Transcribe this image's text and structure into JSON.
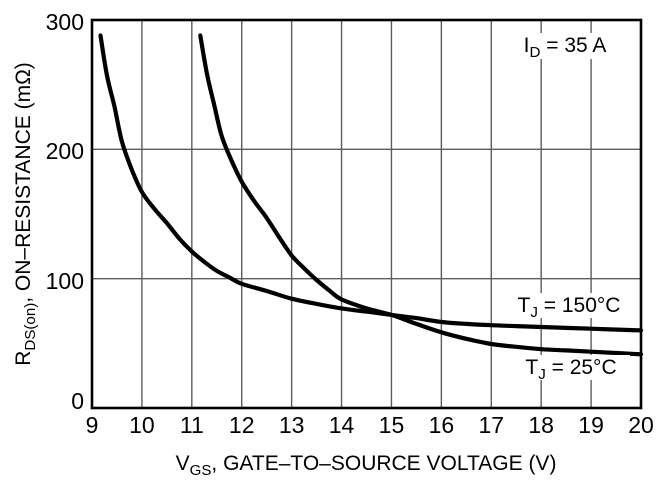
{
  "chart_data": {
    "type": "line",
    "title": "",
    "xlabel": "V_{GS}, GATE–TO–SOURCE VOLTAGE (V)",
    "ylabel": "R_{DS(on)}, ON–RESISTANCE (mΩ)",
    "xlim": [
      9,
      20
    ],
    "ylim": [
      0,
      300
    ],
    "x_ticks": [
      "9",
      "10",
      "11",
      "12",
      "13",
      "14",
      "15",
      "16",
      "17",
      "18",
      "19",
      "20"
    ],
    "y_ticks": [
      "0",
      "100",
      "200",
      "300"
    ],
    "grid": true,
    "legend_position": "inline-labels",
    "annotation": {
      "text": "I_{D} = 35 A"
    },
    "series": [
      {
        "name": "TJ = 150C",
        "label_text": "T_{J} = 150°C",
        "x": [
          9.17,
          9.3,
          9.45,
          9.6,
          9.8,
          10,
          10.25,
          10.5,
          10.75,
          11,
          11.25,
          11.5,
          11.75,
          12,
          12.5,
          13,
          13.5,
          14,
          14.5,
          15,
          15.5,
          16,
          16.5,
          17,
          17.5,
          18,
          19,
          20
        ],
        "y": [
          288,
          257,
          233,
          206,
          184,
          167,
          154,
          143,
          131,
          121,
          113,
          106,
          101,
          96,
          90.5,
          84.5,
          80.5,
          77,
          74.5,
          72,
          69.5,
          66.5,
          65,
          64,
          63.3,
          62.6,
          61.3,
          60
        ]
      },
      {
        "name": "TJ = 25C",
        "label_text": "T_{J} = 25°C",
        "x": [
          11.17,
          11.3,
          11.45,
          11.6,
          11.8,
          12,
          12.25,
          12.5,
          12.75,
          13,
          13.25,
          13.5,
          13.75,
          14,
          14.5,
          15,
          15.5,
          16,
          16.5,
          17,
          17.5,
          18,
          18.5,
          19,
          19.5,
          20
        ],
        "y": [
          288,
          259,
          234,
          210,
          191,
          175,
          160,
          147,
          132,
          118,
          108,
          99,
          91,
          84,
          77,
          72,
          65,
          58.5,
          53.5,
          49.5,
          47.3,
          45.5,
          44.5,
          43.5,
          42.5,
          41.5
        ]
      }
    ],
    "styles": {
      "curve_color": "#000000",
      "grid_color": "#5c5c5c",
      "frame_color": "#000000",
      "text_color": "#000000",
      "background": "#ffffff"
    }
  }
}
